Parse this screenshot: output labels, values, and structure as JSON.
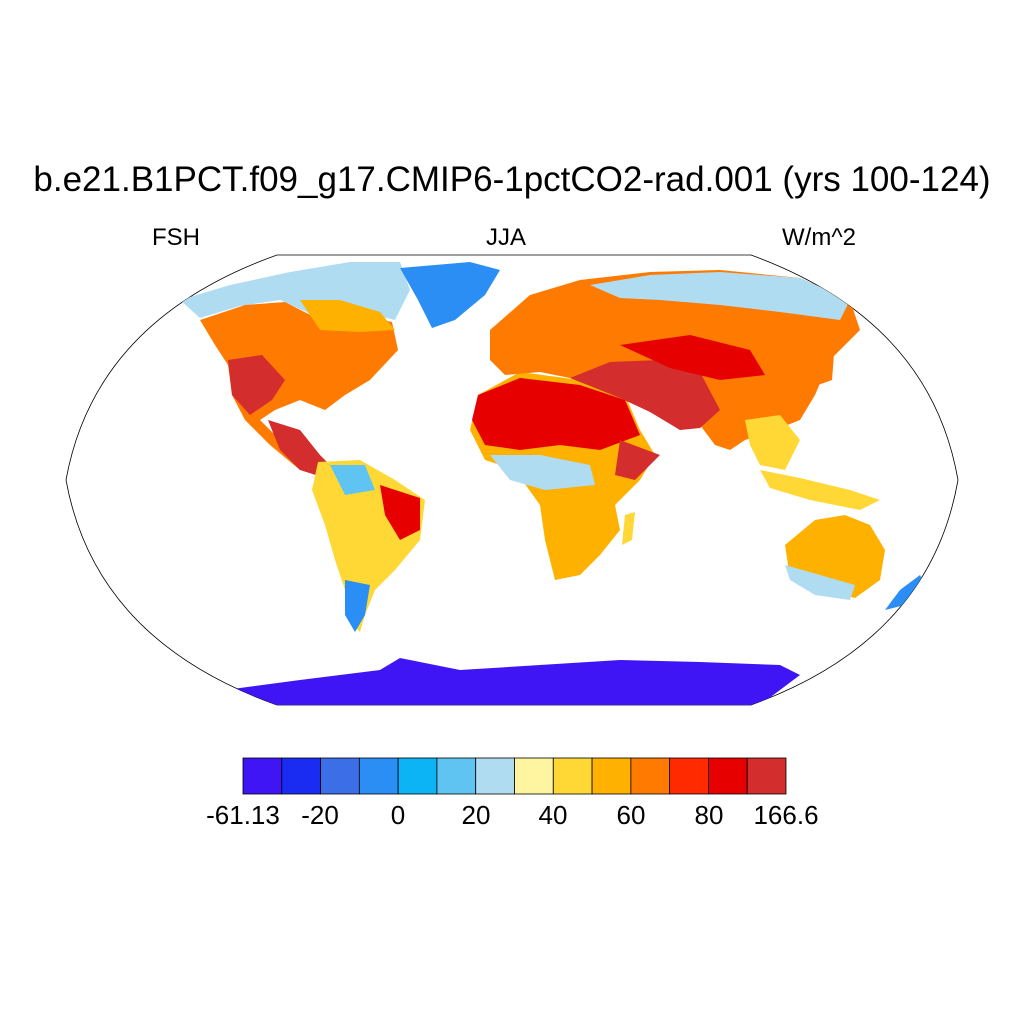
{
  "title": "b.e21.B1PCT.f09_g17.CMIP6-1pctCO2-rad.001 (yrs 100-124)",
  "left_label": "FSH",
  "center_label": "JJA",
  "right_label": "W/m^2",
  "colorbar": {
    "labels": [
      "-61.13",
      "-20",
      "0",
      "20",
      "40",
      "60",
      "80",
      "166.6"
    ],
    "colors": [
      "#3f14f5",
      "#1a2cf2",
      "#3c6ee8",
      "#2a8ef5",
      "#0cb4f5",
      "#5fc4f2",
      "#b0dcf2",
      "#fff5a0",
      "#ffd835",
      "#ffb100",
      "#ff7a00",
      "#ff2a00",
      "#e60000",
      "#d32d2d"
    ]
  },
  "regions": [
    {
      "name": "North America",
      "color": "#ff7a00"
    },
    {
      "name": "Canada/Arctic",
      "color": "#b0dcf2"
    },
    {
      "name": "Greenland",
      "color": "#2a8ef5"
    },
    {
      "name": "South America",
      "color": "#ffd835"
    },
    {
      "name": "Africa",
      "color": "#ffb100"
    },
    {
      "name": "Sahara/Arabia",
      "color": "#d32d2d"
    },
    {
      "name": "Europe/Asia",
      "color": "#ff7a00"
    },
    {
      "name": "Siberia",
      "color": "#b0dcf2"
    },
    {
      "name": "Australia",
      "color": "#ffb100"
    },
    {
      "name": "Antarctica",
      "color": "#3f14f5"
    }
  ]
}
